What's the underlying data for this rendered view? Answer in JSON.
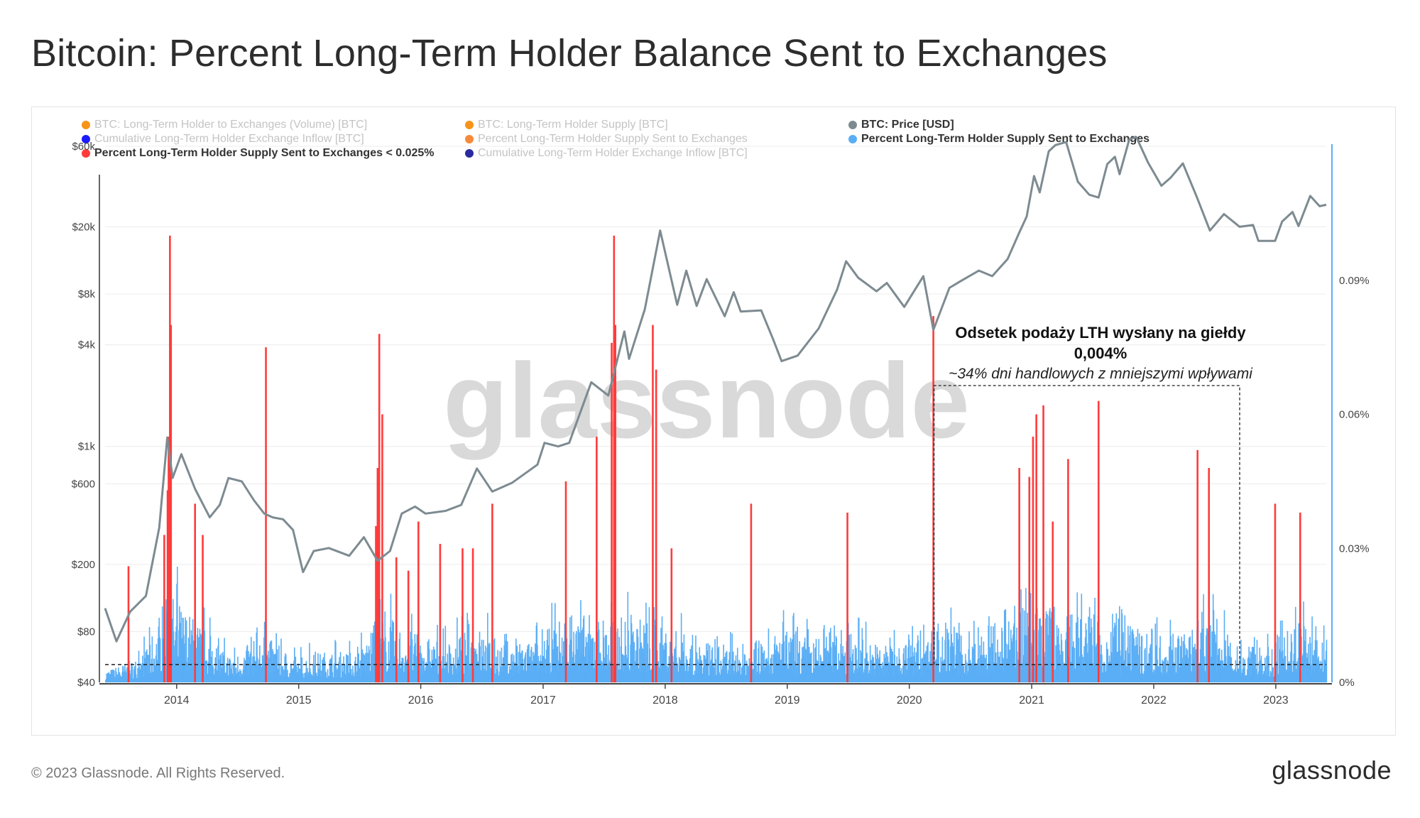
{
  "page": {
    "title": "Bitcoin: Percent Long-Term Holder Balance Sent to Exchanges",
    "copyright": "© 2023 Glassnode. All Rights Reserved.",
    "logo_text": "glassnode",
    "watermark": "glassnode"
  },
  "legend": [
    {
      "label": "BTC: Long-Term Holder to Exchanges (Volume) [BTC]",
      "color": "#f7931a",
      "active": false
    },
    {
      "label": "BTC: Long-Term Holder Supply [BTC]",
      "color": "#f7931a",
      "active": false
    },
    {
      "label": "BTC: Price [USD]",
      "color": "#7d8b91",
      "active": true
    },
    {
      "label": "Cumulative Long-Term Holder Exchange Inflow [BTC]",
      "color": "#1a1aff",
      "active": false
    },
    {
      "label": "Percent Long-Term Holder Supply Sent to Exchanges",
      "color": "#f7893a",
      "active": false
    },
    {
      "label": "Percent Long-Term Holder Supply Sent to Exchanges",
      "color": "#5aaef5",
      "active": true
    },
    {
      "label": "Percent Long-Term Holder Supply Sent to Exchanges < 0.025%",
      "color": "#ff3b3b",
      "active": true
    },
    {
      "label": "Cumulative Long-Term Holder Exchange Inflow [BTC]",
      "color": "#2a2aa0",
      "active": false
    }
  ],
  "annotation": {
    "title": "Odsetek podaży LTH wysłany na giełdy",
    "value": "0,004%",
    "note": "~34% dni handlowych z mniejszymi wpływami"
  },
  "chart_data": {
    "type": "bar",
    "x_range": [
      "2013-06-01",
      "2023-06-01"
    ],
    "x_ticks": [
      "2014",
      "2015",
      "2016",
      "2017",
      "2018",
      "2019",
      "2020",
      "2021",
      "2022",
      "2023"
    ],
    "y_left": {
      "scale": "log",
      "tick_labels": [
        "$40",
        "$80",
        "$200",
        "$600",
        "$1k",
        "$4k",
        "$8k",
        "$20k",
        "$60k"
      ],
      "tick_values": [
        40,
        80,
        200,
        600,
        1000,
        4000,
        8000,
        20000,
        60000
      ],
      "range": [
        40,
        60000
      ]
    },
    "y_right": {
      "scale": "linear",
      "tick_labels": [
        "0%",
        "0.03%",
        "0.06%",
        "0.09%"
      ],
      "tick_values": [
        0,
        0.03,
        0.06,
        0.09
      ],
      "range": [
        0,
        0.12
      ]
    },
    "threshold_line": 0.004,
    "annotation_bracket_range": [
      "2020-03-15",
      "2022-09-15"
    ],
    "price_series": {
      "name": "BTC: Price [USD]",
      "color": "#7d8b91",
      "points": [
        [
          "2013-06-01",
          110
        ],
        [
          "2013-07-05",
          70
        ],
        [
          "2013-08-15",
          105
        ],
        [
          "2013-10-01",
          130
        ],
        [
          "2013-11-10",
          330
        ],
        [
          "2013-12-04",
          1130
        ],
        [
          "2013-12-20",
          650
        ],
        [
          "2014-01-15",
          900
        ],
        [
          "2014-02-25",
          560
        ],
        [
          "2014-04-10",
          380
        ],
        [
          "2014-05-10",
          450
        ],
        [
          "2014-06-05",
          650
        ],
        [
          "2014-07-15",
          620
        ],
        [
          "2014-08-20",
          480
        ],
        [
          "2014-09-20",
          400
        ],
        [
          "2014-10-15",
          380
        ],
        [
          "2014-11-15",
          370
        ],
        [
          "2014-12-15",
          320
        ],
        [
          "2015-01-14",
          180
        ],
        [
          "2015-02-15",
          240
        ],
        [
          "2015-04-01",
          250
        ],
        [
          "2015-06-01",
          225
        ],
        [
          "2015-07-15",
          290
        ],
        [
          "2015-08-25",
          210
        ],
        [
          "2015-10-01",
          240
        ],
        [
          "2015-11-05",
          400
        ],
        [
          "2015-12-15",
          440
        ],
        [
          "2016-01-15",
          400
        ],
        [
          "2016-03-15",
          415
        ],
        [
          "2016-05-01",
          450
        ],
        [
          "2016-06-17",
          740
        ],
        [
          "2016-08-02",
          540
        ],
        [
          "2016-10-01",
          610
        ],
        [
          "2016-12-15",
          780
        ],
        [
          "2017-01-05",
          1050
        ],
        [
          "2017-02-15",
          1000
        ],
        [
          "2017-03-20",
          1050
        ],
        [
          "2017-05-25",
          2400
        ],
        [
          "2017-07-15",
          2000
        ],
        [
          "2017-09-01",
          4800
        ],
        [
          "2017-09-15",
          3300
        ],
        [
          "2017-11-01",
          6500
        ],
        [
          "2017-12-17",
          19000
        ],
        [
          "2018-02-06",
          6900
        ],
        [
          "2018-03-05",
          11000
        ],
        [
          "2018-04-05",
          6800
        ],
        [
          "2018-05-05",
          9800
        ],
        [
          "2018-06-28",
          5900
        ],
        [
          "2018-07-25",
          8200
        ],
        [
          "2018-08-15",
          6300
        ],
        [
          "2018-10-15",
          6400
        ],
        [
          "2018-11-20",
          4300
        ],
        [
          "2018-12-15",
          3200
        ],
        [
          "2019-02-01",
          3450
        ],
        [
          "2019-04-05",
          5000
        ],
        [
          "2019-05-30",
          8500
        ],
        [
          "2019-06-26",
          12500
        ],
        [
          "2019-08-01",
          10000
        ],
        [
          "2019-09-25",
          8300
        ],
        [
          "2019-10-26",
          9300
        ],
        [
          "2019-12-17",
          6700
        ],
        [
          "2020-02-12",
          10200
        ],
        [
          "2020-03-13",
          4900
        ],
        [
          "2020-04-30",
          8700
        ],
        [
          "2020-06-01",
          9500
        ],
        [
          "2020-07-27",
          11000
        ],
        [
          "2020-09-05",
          10200
        ],
        [
          "2020-10-21",
          12900
        ],
        [
          "2020-11-25",
          18500
        ],
        [
          "2020-12-17",
          23000
        ],
        [
          "2021-01-08",
          40000
        ],
        [
          "2021-01-25",
          32000
        ],
        [
          "2021-02-21",
          56000
        ],
        [
          "2021-03-13",
          61000
        ],
        [
          "2021-04-14",
          63500
        ],
        [
          "2021-05-19",
          37000
        ],
        [
          "2021-06-22",
          31000
        ],
        [
          "2021-07-20",
          29800
        ],
        [
          "2021-08-15",
          47000
        ],
        [
          "2021-09-07",
          52000
        ],
        [
          "2021-09-21",
          41000
        ],
        [
          "2021-10-20",
          66000
        ],
        [
          "2021-11-10",
          68000
        ],
        [
          "2021-12-15",
          48000
        ],
        [
          "2022-01-24",
          35000
        ],
        [
          "2022-02-20",
          39000
        ],
        [
          "2022-03-29",
          47500
        ],
        [
          "2022-05-10",
          30000
        ],
        [
          "2022-06-18",
          19000
        ],
        [
          "2022-07-30",
          23800
        ],
        [
          "2022-09-15",
          20000
        ],
        [
          "2022-10-25",
          20500
        ],
        [
          "2022-11-10",
          16500
        ],
        [
          "2022-12-30",
          16500
        ],
        [
          "2023-01-20",
          21500
        ],
        [
          "2023-02-20",
          24500
        ],
        [
          "2023-03-10",
          20200
        ],
        [
          "2023-04-14",
          30500
        ],
        [
          "2023-05-12",
          26500
        ],
        [
          "2023-06-01",
          27000
        ]
      ]
    },
    "red_spikes": {
      "name": "Percent Long-Term Holder Supply Sent to Exchanges < 0.025%",
      "color": "#ff3b3b",
      "bars": [
        [
          "2013-08-10",
          0.026
        ],
        [
          "2013-11-25",
          0.033
        ],
        [
          "2013-12-05",
          0.043
        ],
        [
          "2013-12-08",
          0.055
        ],
        [
          "2013-12-12",
          0.1
        ],
        [
          "2013-12-15",
          0.08
        ],
        [
          "2014-02-25",
          0.04
        ],
        [
          "2014-03-20",
          0.033
        ],
        [
          "2014-09-25",
          0.075
        ],
        [
          "2015-08-20",
          0.035
        ],
        [
          "2015-08-25",
          0.048
        ],
        [
          "2015-08-30",
          0.078
        ],
        [
          "2015-09-08",
          0.06
        ],
        [
          "2015-10-20",
          0.028
        ],
        [
          "2015-11-25",
          0.025
        ],
        [
          "2015-12-25",
          0.036
        ],
        [
          "2016-02-28",
          0.031
        ],
        [
          "2016-05-05",
          0.03
        ],
        [
          "2016-06-05",
          0.03
        ],
        [
          "2016-08-02",
          0.04
        ],
        [
          "2017-03-10",
          0.045
        ],
        [
          "2017-06-10",
          0.055
        ],
        [
          "2017-07-25",
          0.076
        ],
        [
          "2017-08-01",
          0.1
        ],
        [
          "2017-08-05",
          0.08
        ],
        [
          "2017-11-25",
          0.08
        ],
        [
          "2017-12-05",
          0.07
        ],
        [
          "2018-01-20",
          0.03
        ],
        [
          "2018-09-15",
          0.04
        ],
        [
          "2019-06-30",
          0.038
        ],
        [
          "2020-03-13",
          0.082
        ],
        [
          "2020-11-25",
          0.048
        ],
        [
          "2020-12-25",
          0.046
        ],
        [
          "2021-01-05",
          0.055
        ],
        [
          "2021-01-15",
          0.06
        ],
        [
          "2021-02-05",
          0.062
        ],
        [
          "2021-03-05",
          0.036
        ],
        [
          "2021-04-20",
          0.05
        ],
        [
          "2021-07-20",
          0.063
        ],
        [
          "2022-05-12",
          0.052
        ],
        [
          "2022-06-15",
          0.048
        ],
        [
          "2022-12-30",
          0.04
        ],
        [
          "2023-03-15",
          0.038
        ]
      ]
    },
    "blue_series": {
      "name": "Percent Long-Term Holder Supply Sent to Exchanges",
      "color": "#5aaef5",
      "bars": [
        [
          "2013-06",
          0.003
        ],
        [
          "2013-09",
          0.006
        ],
        [
          "2013-12",
          0.02
        ],
        [
          "2014-03",
          0.013
        ],
        [
          "2014-06",
          0.006
        ],
        [
          "2014-09",
          0.011
        ],
        [
          "2014-12",
          0.006
        ],
        [
          "2015-03",
          0.007
        ],
        [
          "2015-06",
          0.007
        ],
        [
          "2015-09",
          0.015
        ],
        [
          "2015-12",
          0.011
        ],
        [
          "2016-03",
          0.009
        ],
        [
          "2016-06",
          0.013
        ],
        [
          "2016-09",
          0.008
        ],
        [
          "2016-12",
          0.01
        ],
        [
          "2017-03",
          0.016
        ],
        [
          "2017-06",
          0.015
        ],
        [
          "2017-09",
          0.015
        ],
        [
          "2017-12",
          0.014
        ],
        [
          "2018-03",
          0.01
        ],
        [
          "2018-06",
          0.008
        ],
        [
          "2018-09",
          0.009
        ],
        [
          "2018-12",
          0.012
        ],
        [
          "2019-03",
          0.01
        ],
        [
          "2019-06",
          0.012
        ],
        [
          "2019-09",
          0.009
        ],
        [
          "2019-12",
          0.009
        ],
        [
          "2020-03",
          0.015
        ],
        [
          "2020-06",
          0.01
        ],
        [
          "2020-09",
          0.011
        ],
        [
          "2020-12",
          0.018
        ],
        [
          "2021-03",
          0.016
        ],
        [
          "2021-06",
          0.016
        ],
        [
          "2021-09",
          0.013
        ],
        [
          "2021-12",
          0.012
        ],
        [
          "2022-03",
          0.011
        ],
        [
          "2022-06",
          0.015
        ],
        [
          "2022-09",
          0.008
        ],
        [
          "2022-12",
          0.008
        ],
        [
          "2023-03",
          0.014
        ],
        [
          "2023-05",
          0.01
        ]
      ]
    }
  }
}
